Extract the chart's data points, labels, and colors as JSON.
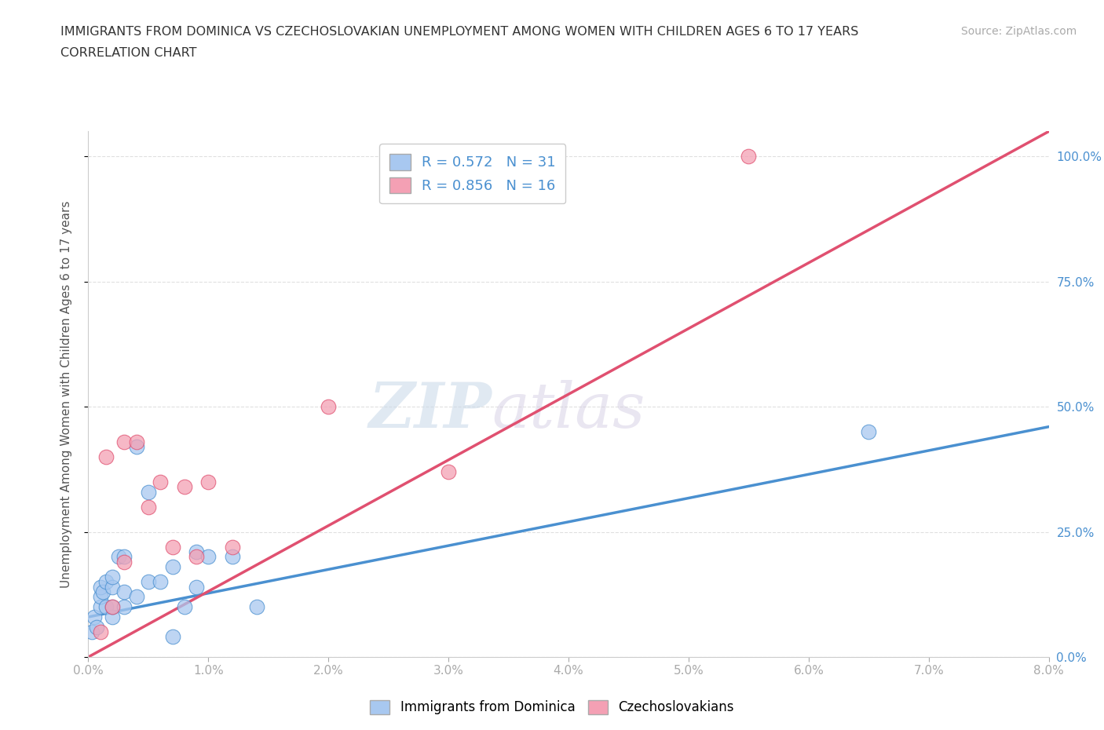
{
  "title_line1": "IMMIGRANTS FROM DOMINICA VS CZECHOSLOVAKIAN UNEMPLOYMENT AMONG WOMEN WITH CHILDREN AGES 6 TO 17 YEARS",
  "title_line2": "CORRELATION CHART",
  "source": "Source: ZipAtlas.com",
  "ylabel": "Unemployment Among Women with Children Ages 6 to 17 years",
  "xlim": [
    0.0,
    0.08
  ],
  "ylim": [
    0.0,
    1.05
  ],
  "xticks": [
    0.0,
    0.01,
    0.02,
    0.03,
    0.04,
    0.05,
    0.06,
    0.07,
    0.08
  ],
  "xticklabels": [
    "0.0%",
    "1.0%",
    "2.0%",
    "3.0%",
    "4.0%",
    "5.0%",
    "6.0%",
    "7.0%",
    "8.0%"
  ],
  "yticks": [
    0.0,
    0.25,
    0.5,
    0.75,
    1.0
  ],
  "yticklabels": [
    "0.0%",
    "25.0%",
    "50.0%",
    "75.0%",
    "100.0%"
  ],
  "blue_scatter_x": [
    0.0003,
    0.0005,
    0.0007,
    0.001,
    0.001,
    0.001,
    0.0012,
    0.0015,
    0.0015,
    0.002,
    0.002,
    0.002,
    0.002,
    0.0025,
    0.003,
    0.003,
    0.003,
    0.004,
    0.004,
    0.005,
    0.005,
    0.006,
    0.007,
    0.007,
    0.008,
    0.009,
    0.009,
    0.01,
    0.012,
    0.014,
    0.065
  ],
  "blue_scatter_y": [
    0.05,
    0.08,
    0.06,
    0.1,
    0.12,
    0.14,
    0.13,
    0.1,
    0.15,
    0.08,
    0.1,
    0.14,
    0.16,
    0.2,
    0.1,
    0.13,
    0.2,
    0.12,
    0.42,
    0.15,
    0.33,
    0.15,
    0.04,
    0.18,
    0.1,
    0.14,
    0.21,
    0.2,
    0.2,
    0.1,
    0.45
  ],
  "pink_scatter_x": [
    0.001,
    0.0015,
    0.002,
    0.003,
    0.003,
    0.004,
    0.005,
    0.006,
    0.007,
    0.008,
    0.009,
    0.01,
    0.012,
    0.02,
    0.03,
    0.055
  ],
  "pink_scatter_y": [
    0.05,
    0.4,
    0.1,
    0.19,
    0.43,
    0.43,
    0.3,
    0.35,
    0.22,
    0.34,
    0.2,
    0.35,
    0.22,
    0.5,
    0.37,
    1.0
  ],
  "blue_r": 0.572,
  "blue_n": 31,
  "pink_r": 0.856,
  "pink_n": 16,
  "blue_color": "#a8c8f0",
  "pink_color": "#f4a0b4",
  "blue_line_color": "#4a90d0",
  "pink_line_color": "#e05070",
  "blue_trend_x": [
    0.0,
    0.08
  ],
  "blue_trend_y": [
    0.08,
    0.46
  ],
  "pink_trend_x": [
    0.0,
    0.08
  ],
  "pink_trend_y": [
    0.0,
    1.05
  ],
  "watermark_zip": "ZIP",
  "watermark_atlas": "atlas",
  "background_color": "#ffffff",
  "grid_color": "#e0e0e0"
}
